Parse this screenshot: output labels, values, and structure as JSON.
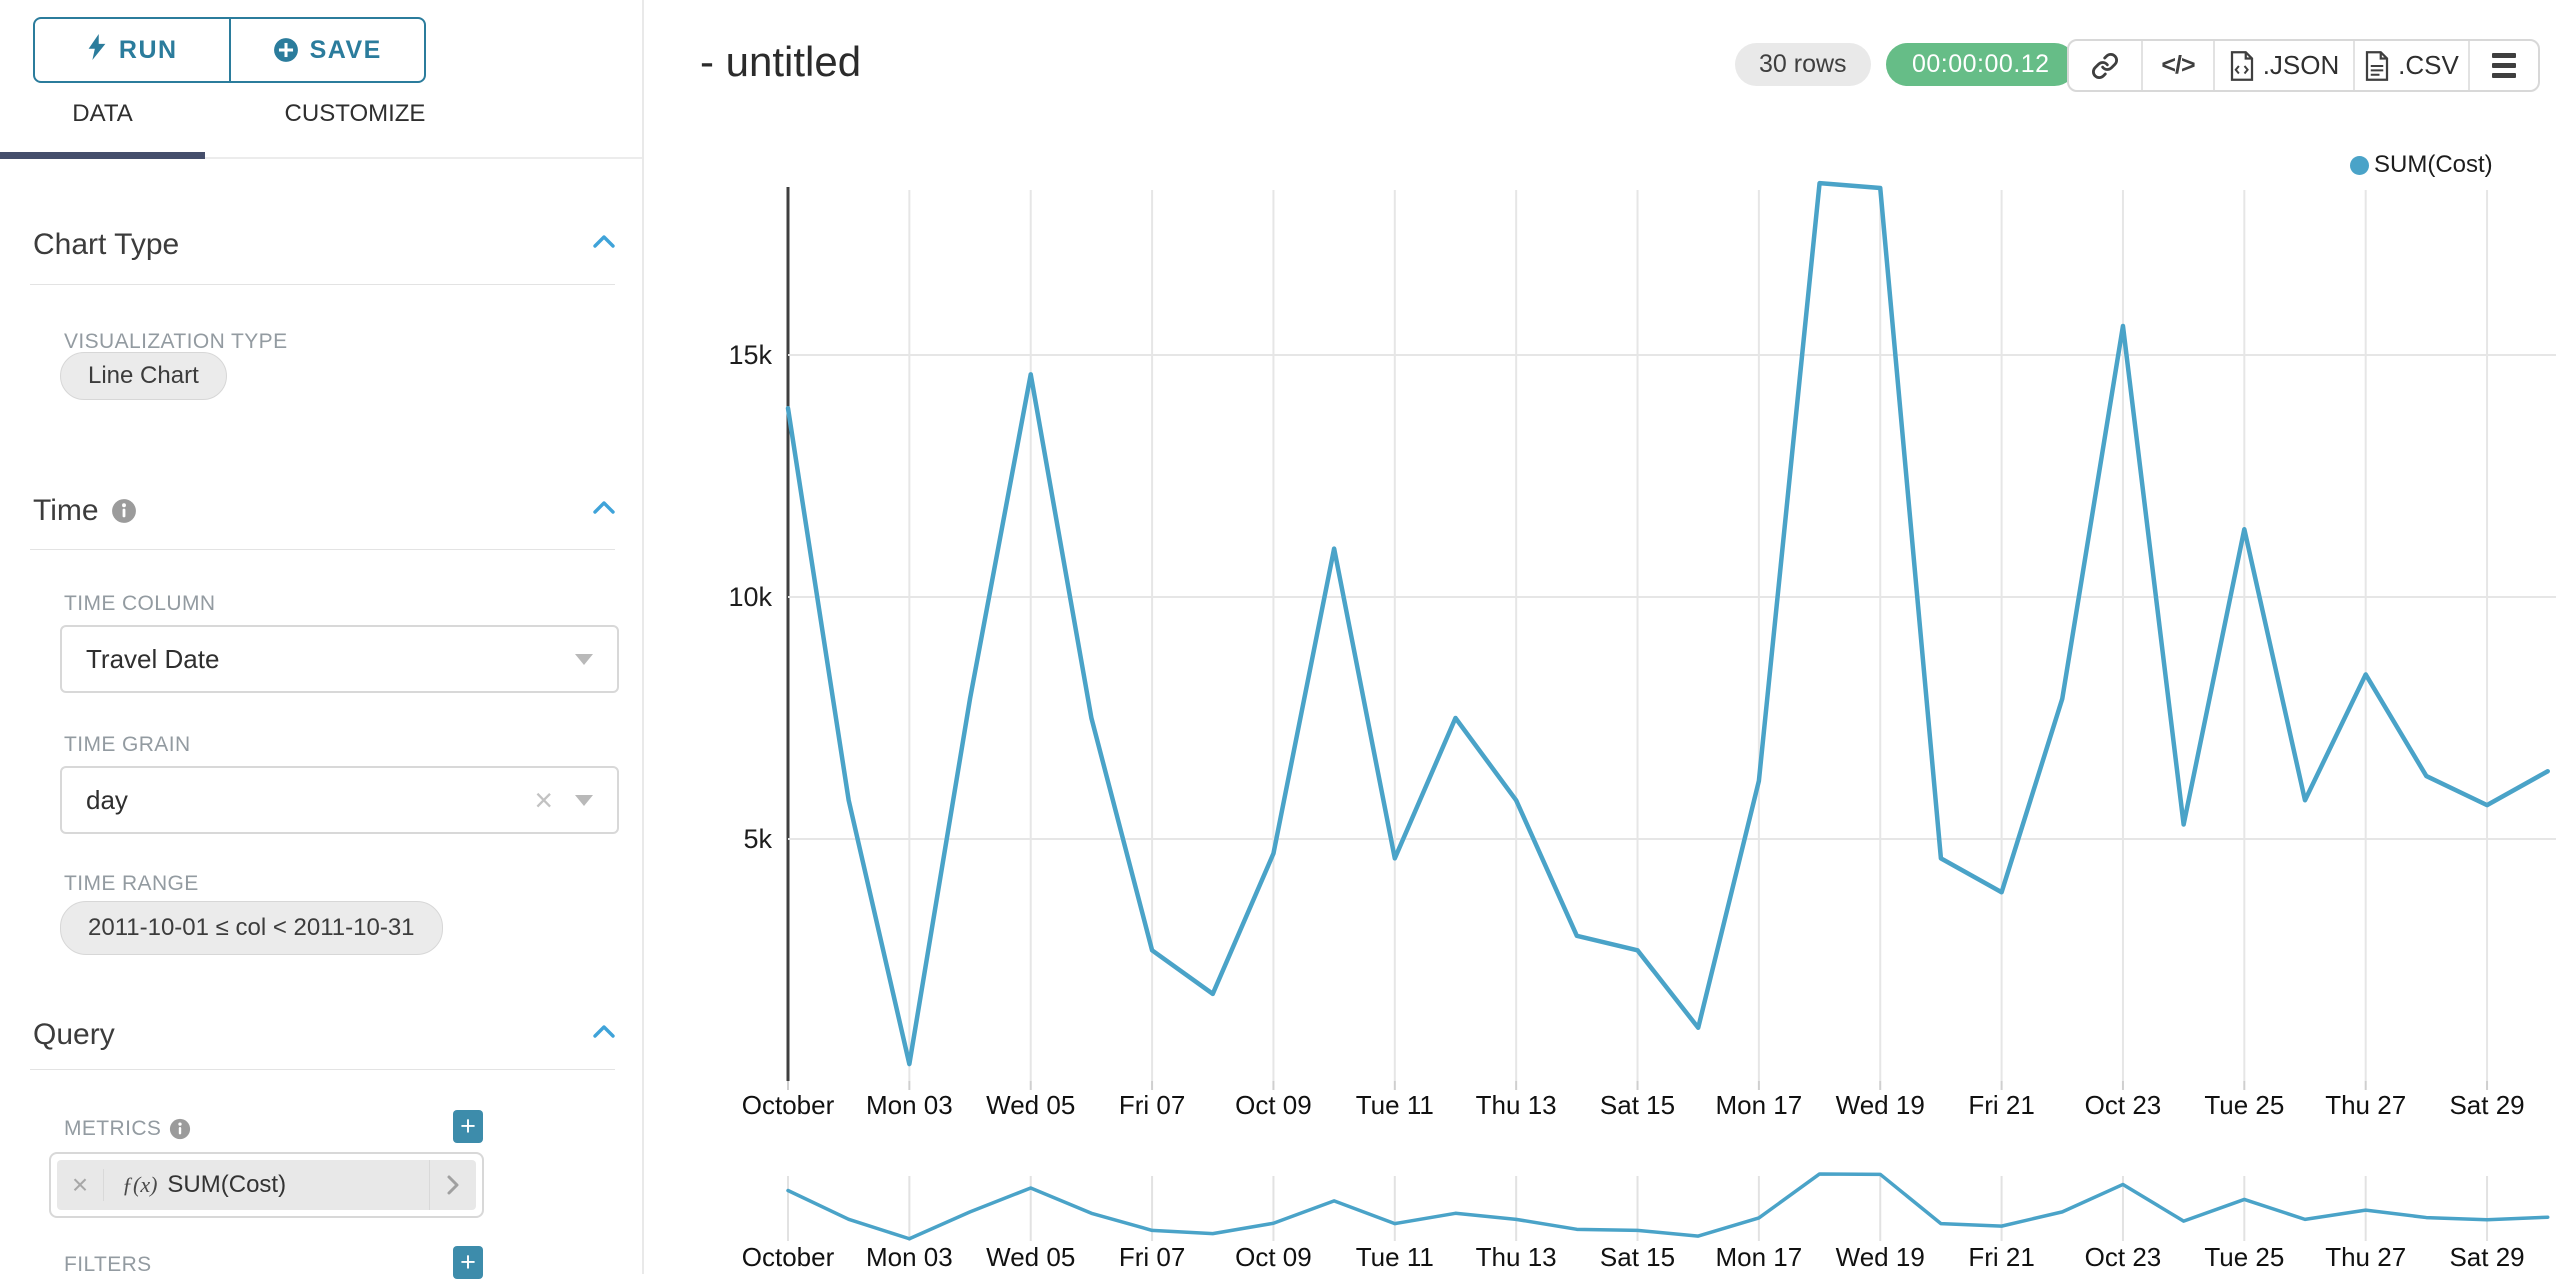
{
  "colors": {
    "accent_teal": "#2b7c9c",
    "chevron_blue": "#3fa3d9",
    "plus_button": "#3d8cab",
    "tab_underline": "#454e6b",
    "line": "#4aa3c8",
    "timer_badge": "#66bd87",
    "gridline": "#e6e6e6",
    "axis": "#3f3f3f"
  },
  "sidebar": {
    "run_button": {
      "label": "RUN",
      "icon": "lightning-icon"
    },
    "save_button": {
      "label": "SAVE",
      "icon": "plus-circle-icon"
    },
    "tabs": [
      {
        "label": "DATA",
        "active": true
      },
      {
        "label": "CUSTOMIZE",
        "active": false
      }
    ],
    "chart_type_section": {
      "title": "Chart Type",
      "visualization_type_label": "VISUALIZATION TYPE",
      "visualization_type_value": "Line Chart"
    },
    "time_section": {
      "title": "Time",
      "time_column_label": "TIME COLUMN",
      "time_column_value": "Travel Date",
      "time_grain_label": "TIME GRAIN",
      "time_grain_value": "day",
      "time_range_label": "TIME RANGE",
      "time_range_value": "2011-10-01 ≤ col < 2011-10-31"
    },
    "query_section": {
      "title": "Query",
      "metrics_label": "METRICS",
      "metric": {
        "fx": "ƒ(x)",
        "label": "SUM(Cost)"
      },
      "filters_label": "FILTERS"
    }
  },
  "header": {
    "title": "- untitled",
    "row_count": "30 rows",
    "timer": "00:00:00.12",
    "toolbar": {
      "link_icon": "link-icon",
      "code_icon": "code-icon",
      "code_glyph": "</>",
      "json_label": ".JSON",
      "csv_label": ".CSV",
      "menu_icon": "menu-icon"
    }
  },
  "legend": {
    "label": "SUM(Cost)"
  },
  "chart_data": {
    "type": "line",
    "title": "- untitled",
    "x": [
      "2011-10-01",
      "2011-10-02",
      "2011-10-03",
      "2011-10-04",
      "2011-10-05",
      "2011-10-06",
      "2011-10-07",
      "2011-10-08",
      "2011-10-09",
      "2011-10-10",
      "2011-10-11",
      "2011-10-12",
      "2011-10-13",
      "2011-10-14",
      "2011-10-15",
      "2011-10-16",
      "2011-10-17",
      "2011-10-18",
      "2011-10-19",
      "2011-10-20",
      "2011-10-21",
      "2011-10-22",
      "2011-10-23",
      "2011-10-24",
      "2011-10-25",
      "2011-10-26",
      "2011-10-27",
      "2011-10-28",
      "2011-10-29",
      "2011-10-30"
    ],
    "series": [
      {
        "name": "SUM(Cost)",
        "values": [
          13900,
          5800,
          350,
          7900,
          14600,
          7500,
          2700,
          1800,
          4700,
          11000,
          4600,
          7500,
          5800,
          3000,
          2700,
          1100,
          6200,
          18550,
          18450,
          4600,
          3900,
          7900,
          15600,
          5300,
          11400,
          5800,
          8400,
          6300,
          5700,
          6400
        ]
      }
    ],
    "x_tick_labels": [
      "October",
      "Mon 03",
      "Wed 05",
      "Fri 07",
      "Oct 09",
      "Tue 11",
      "Thu 13",
      "Sat 15",
      "Mon 17",
      "Wed 19",
      "Fri 21",
      "Oct 23",
      "Tue 25",
      "Thu 27",
      "Sat 29"
    ],
    "x_tick_days": [
      1,
      3,
      5,
      7,
      9,
      11,
      13,
      15,
      17,
      19,
      21,
      23,
      25,
      27,
      29
    ],
    "y_ticks": [
      {
        "label": "5k",
        "value": 5000
      },
      {
        "label": "10k",
        "value": 10000
      },
      {
        "label": "15k",
        "value": 15000
      }
    ],
    "ylim": [
      0,
      18600
    ],
    "xlabel": "",
    "ylabel": "",
    "grid": true,
    "legend_position": "top-right",
    "range_selector": true
  }
}
